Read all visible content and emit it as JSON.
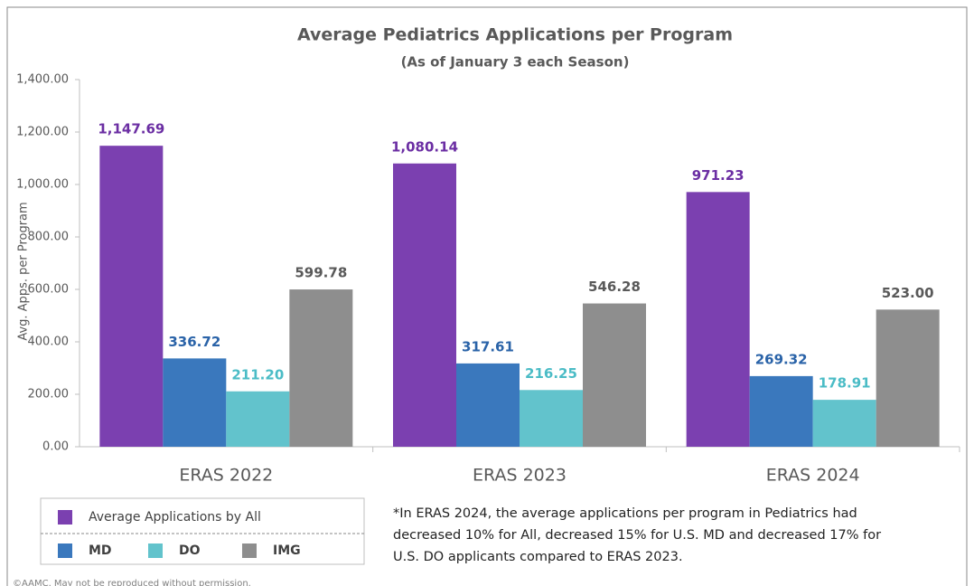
{
  "chart_data": {
    "type": "bar",
    "title": "Average Pediatrics Applications per Program",
    "subtitle": "(As of January 3 each Season)",
    "y_label": "Avg. Apps. per Program",
    "categories": [
      "ERAS 2022",
      "ERAS 2023",
      "ERAS 2024"
    ],
    "series": [
      {
        "name": "Average Applications by All",
        "color": "#7b40b0",
        "label_color": "#6b2ea3",
        "values": [
          1147.69,
          1080.14,
          971.23
        ],
        "value_labels": [
          "1,147.69",
          "1,080.14",
          "971.23"
        ]
      },
      {
        "name": "MD",
        "color": "#3a78bd",
        "label_color": "#2a63a8",
        "values": [
          336.72,
          317.61,
          269.32
        ],
        "value_labels": [
          "336.72",
          "317.61",
          "269.32"
        ]
      },
      {
        "name": "DO",
        "color": "#62c3cc",
        "label_color": "#4bbcc6",
        "values": [
          211.2,
          216.25,
          178.91
        ],
        "value_labels": [
          "211.20",
          "216.25",
          "178.91"
        ]
      },
      {
        "name": "IMG",
        "color": "#8e8e8e",
        "label_color": "#595959",
        "values": [
          599.78,
          546.28,
          523.0
        ],
        "value_labels": [
          "599.78",
          "546.28",
          "523.00"
        ]
      }
    ],
    "ylim": [
      0,
      1400
    ],
    "yticks": [
      {
        "value": 0,
        "label": "0.00"
      },
      {
        "value": 200,
        "label": "200.00"
      },
      {
        "value": 400,
        "label": "400.00"
      },
      {
        "value": 600,
        "label": "600.00"
      },
      {
        "value": 800,
        "label": "800.00"
      },
      {
        "value": 1000,
        "label": "1,000.00"
      },
      {
        "value": 1200,
        "label": "1,200.00"
      },
      {
        "value": 1400,
        "label": "1,400.00"
      }
    ],
    "grid": false,
    "note": [
      "*In ERAS 2024, the average applications per program in Pediatrics had",
      "decreased 10% for All, decreased 15% for U.S. MD and decreased 17% for",
      "U.S. DO applicants compared to ERAS 2023."
    ],
    "copyright": "©AAMC. May not be reproduced without permission."
  }
}
